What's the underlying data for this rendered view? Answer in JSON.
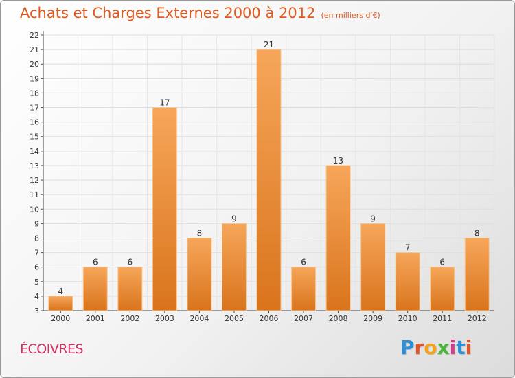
{
  "header": {
    "title": "Achats et Charges Externes 2000 à 2012",
    "unit": "(en milliers d'€)"
  },
  "footer": {
    "commune": "ÉCOIVRES",
    "logo_letters": [
      "P",
      "r",
      "o",
      "x",
      "i",
      "t",
      "i"
    ],
    "logo_colors": [
      "#2a8fd6",
      "#e0542a",
      "#f2a21b",
      "#49b53c",
      "#d83a8a",
      "#2a8fd6",
      "#e0542a"
    ]
  },
  "colors": {
    "bar_top": "#f6a65a",
    "bar_bottom": "#d9741c",
    "bar_edge": "#f9c58e",
    "title": "#e05a1c",
    "commune": "#d13060"
  },
  "chart_data": {
    "type": "bar",
    "title": "Achats et Charges Externes 2000 à 2012",
    "subtitle": "(en milliers d'€)",
    "categories": [
      "2000",
      "2001",
      "2002",
      "2003",
      "2004",
      "2005",
      "2006",
      "2007",
      "2008",
      "2009",
      "2010",
      "2011",
      "2012"
    ],
    "values": [
      4,
      6,
      6,
      17,
      8,
      9,
      21,
      6,
      13,
      9,
      7,
      6,
      8
    ],
    "ylim": [
      3,
      22
    ],
    "yticks": [
      3,
      4,
      5,
      6,
      7,
      8,
      9,
      10,
      11,
      12,
      13,
      14,
      15,
      16,
      17,
      18,
      19,
      20,
      21,
      22
    ],
    "grid": true,
    "xlabel": "",
    "ylabel": ""
  }
}
